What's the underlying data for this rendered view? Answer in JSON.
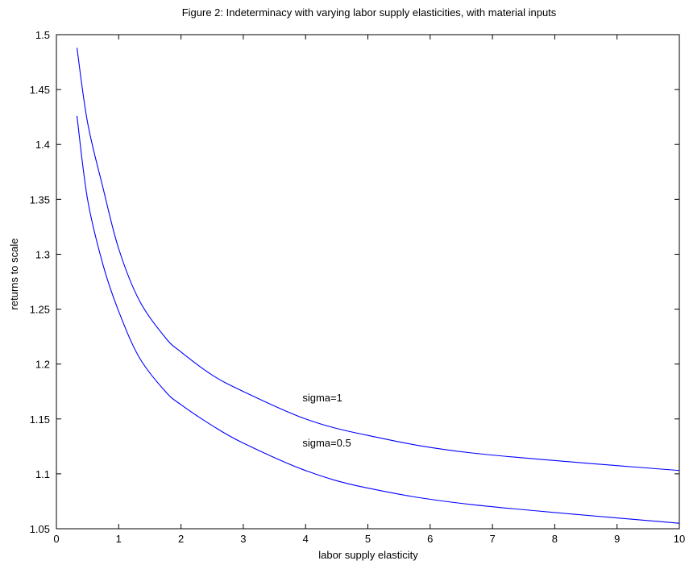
{
  "chart_data": {
    "type": "line",
    "title": "Figure 2: Indeterminacy with varying labor supply elasticities, with material inputs",
    "xlabel": "labor supply elasticity",
    "ylabel": "returns to scale",
    "xlim": [
      0,
      10
    ],
    "ylim": [
      1.05,
      1.5
    ],
    "xticks": [
      "0",
      "1",
      "2",
      "3",
      "4",
      "5",
      "6",
      "7",
      "8",
      "9",
      "10"
    ],
    "yticks": [
      "1.05",
      "1.1",
      "1.15",
      "1.2",
      "1.25",
      "1.3",
      "1.35",
      "1.4",
      "1.45",
      "1.5"
    ],
    "grid": false,
    "series_color": "#0000ff",
    "series": [
      {
        "name": "sigma=1",
        "x": [
          0.33,
          0.5,
          0.75,
          1.0,
          1.33,
          1.75,
          2.0,
          2.5,
          3.0,
          4.0,
          5.0,
          6.67,
          10.0
        ],
        "y": [
          1.488,
          1.42,
          1.36,
          1.305,
          1.258,
          1.224,
          1.211,
          1.19,
          1.175,
          1.15,
          1.135,
          1.119,
          1.103
        ]
      },
      {
        "name": "sigma=0.5",
        "x": [
          0.33,
          0.5,
          0.75,
          1.0,
          1.33,
          1.75,
          2.0,
          2.5,
          3.0,
          4.0,
          5.0,
          6.67,
          10.0
        ],
        "y": [
          1.426,
          1.35,
          1.29,
          1.248,
          1.206,
          1.175,
          1.163,
          1.144,
          1.128,
          1.103,
          1.087,
          1.072,
          1.055
        ]
      }
    ],
    "annotations": [
      {
        "text": "sigma=1",
        "x": 3.95,
        "y": 1.166
      },
      {
        "text": "sigma=0.5",
        "x": 3.95,
        "y": 1.125
      }
    ]
  }
}
